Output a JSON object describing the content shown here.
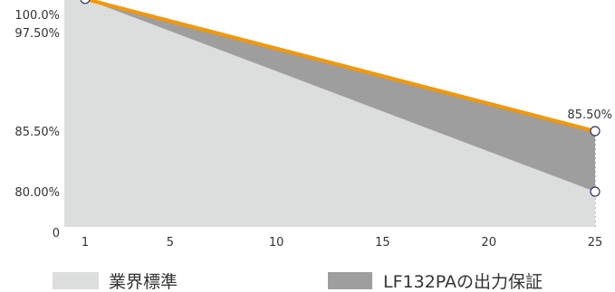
{
  "chart_data": {
    "type": "area",
    "x": [
      1,
      25
    ],
    "xlim": [
      0,
      25
    ],
    "ylim": [
      0,
      100
    ],
    "x_ticks": [
      {
        "value": 1,
        "label": "1"
      },
      {
        "value": 5,
        "label": "5"
      },
      {
        "value": 10,
        "label": "10"
      },
      {
        "value": 15,
        "label": "15"
      },
      {
        "value": 20,
        "label": "20"
      },
      {
        "value": 25,
        "label": "25"
      }
    ],
    "y_ticks": [
      {
        "value": 0,
        "label": "0"
      },
      {
        "value": 80,
        "label": "80.00%"
      },
      {
        "value": 85.5,
        "label": "85.50%"
      },
      {
        "value": 97.5,
        "label": "97.50%"
      },
      {
        "value": 100,
        "label": "100.0%"
      }
    ],
    "series": [
      {
        "name": "業界標準",
        "x": [
          1,
          25
        ],
        "values": [
          97.5,
          80.0
        ],
        "color": "#dcdddd"
      },
      {
        "name": "LF132PAの出力保証",
        "x": [
          1,
          25
        ],
        "values": [
          97.5,
          85.5
        ],
        "color": "#9e9e9f"
      }
    ],
    "line_color": "#f39800",
    "annotations": [
      {
        "x": 25,
        "y": 85.5,
        "label": "85.50%"
      }
    ],
    "grid": true,
    "legend": "bottom"
  }
}
